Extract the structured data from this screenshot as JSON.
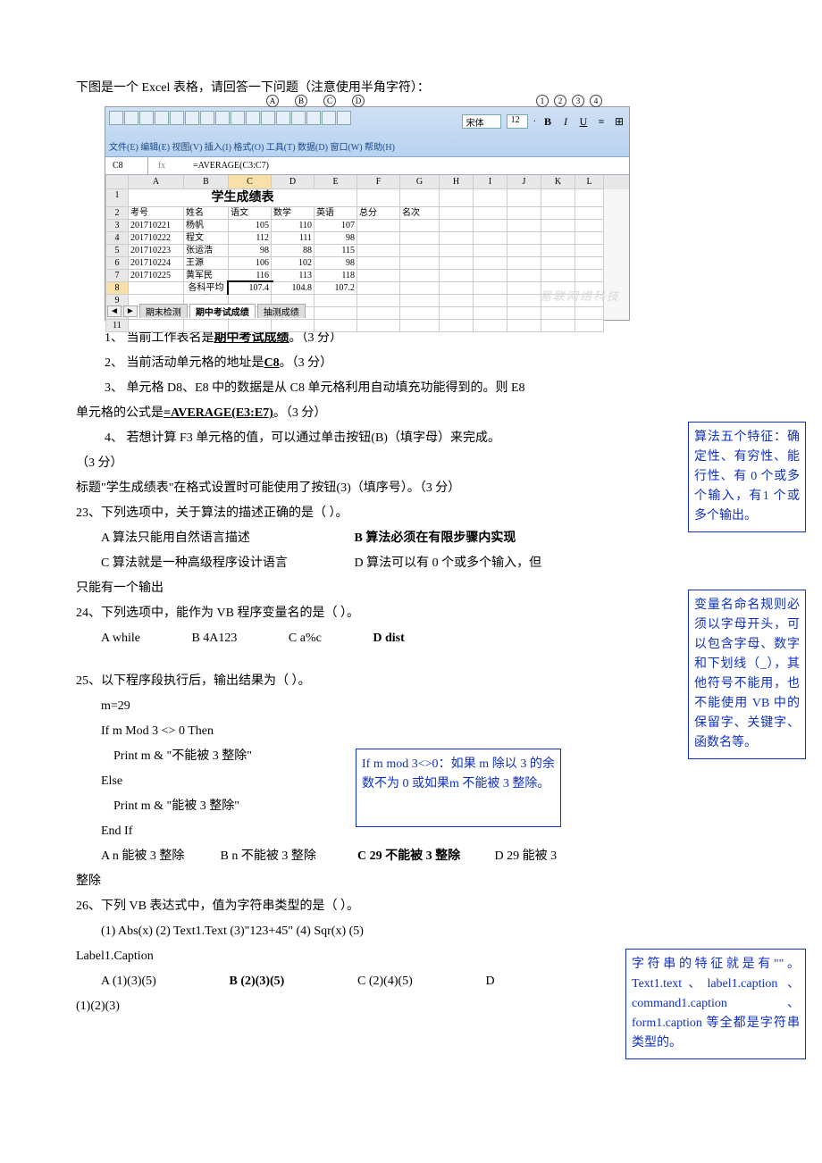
{
  "intro": "下图是一个 Excel 表格，请回答一下问题（注意使用半角字符）：",
  "excel": {
    "abcd": [
      "A",
      "B",
      "C",
      "D"
    ],
    "nums": [
      "1",
      "2",
      "3",
      "4"
    ],
    "menu": "文件(E)  编辑(E)  视图(V)  插入(I)  格式(O)  工具(T)  数据(D)  窗口(W)  帮助(H)",
    "font_name": "宋体",
    "font_size": "12",
    "name_box": "C8",
    "formula": "=AVERAGE(C3:C7)",
    "cols": [
      "A",
      "B",
      "C",
      "D",
      "E",
      "F",
      "G",
      "H",
      "I",
      "J",
      "K",
      "L"
    ],
    "title": "学生成绩表",
    "header": [
      "考号",
      "姓名",
      "语文",
      "数学",
      "英语",
      "总分",
      "名次"
    ],
    "rows": [
      [
        "20171022​1",
        "杨帆",
        "105",
        "110",
        "107",
        "",
        ""
      ],
      [
        "20171022​2",
        "程文",
        "112",
        "111",
        "98",
        "",
        ""
      ],
      [
        "20171022​3",
        "张运浩",
        "98",
        "88",
        "115",
        "",
        ""
      ],
      [
        "20171022​4",
        "王源",
        "106",
        "102",
        "98",
        "",
        ""
      ],
      [
        "20171022​5",
        "黄军民",
        "116",
        "113",
        "118",
        "",
        ""
      ]
    ],
    "avg_row": [
      "",
      "各科平均分",
      "107.4",
      "104.8",
      "107.2",
      "",
      ""
    ],
    "tabs_pre": "◄ ◄ ► ►",
    "tabs": [
      "期末检测",
      "期中考试成绩",
      "抽测成绩"
    ],
    "watermark": "易联网络科技"
  },
  "q1": {
    "pre": "1、 当前工作表名是",
    "ans": "期中考试成绩",
    "post": "。（3 分）"
  },
  "q2": {
    "pre": "2、 当前活动单元格的地址是",
    "ans": "C8",
    "post": "。（3 分）"
  },
  "q3_a": "3、 单元格 D8、E8 中的数据是从 C8 单元格利用自动填充功能得到的。则 E8",
  "q3_b_pre": "单元格的公式是",
  "q3_ans": "=AVERAGE(E3:E7)",
  "q3_b_post": "。（3 分）",
  "q4_a": "4、 若想计算 F3 单元格的值，可以通过单击按钮(B)（填字母）来完成。",
  "q4_b": "（3 分）",
  "q4_c": "标题\"学生成绩表\"在格式设置时可能使用了按钮(3)（填序号）。（3 分）",
  "q23": {
    "stem": "23、下列选项中，关于算法的描述正确的是（    ）。",
    "a": "A 算法只能用自然语言描述",
    "b": "B 算法必须在有限步骤内实现",
    "c": "C 算法就是一种高级程序设计语言",
    "d_1": "D 算法可以有 0 个或多个输入，但",
    "d_2": "只能有一个输出"
  },
  "q24": {
    "stem": "24、下列选项中，能作为 VB 程序变量名的是（    ）。",
    "a": "A while",
    "b": "B 4A123",
    "c": "C a%c",
    "d": "D dist"
  },
  "q25": {
    "stem": "25、以下程序段执行后，输出结果为（     ）。",
    "l1": "m=29",
    "l2": "If m Mod 3 <> 0   Then",
    "l3": "Print   m   &   \"不能被 3 整除\"",
    "l4": "Else",
    "l5": "Print   m   &   \"能被 3 整除\"",
    "l6": "End   If",
    "a": "A n 能被 3 整除",
    "b": "B n 不能被 3 整除",
    "c": "C 29 不能被 3 整除",
    "d_1": "D 29 能被 3",
    "d_2": "整除"
  },
  "q26": {
    "stem": "26、下列 VB 表达式中，值为字符串类型的是（   ）。",
    "items": "(1) Abs(x)    (2) Text1.Text     (3)\"123+45\"  (4) Sqr(x)  (5)",
    "items2": "Label1.Caption",
    "a": "A (1)(3)(5)",
    "b": "B (2)(3)(5)",
    "c": "C (2)(4)(5)",
    "d": "D",
    "d2": "(1)(2)(3)"
  },
  "annot1": "算法五个特征：确定性、有穷性、能行性、有 0 个或多个输入，有1 个或多个输出。",
  "annot2": "变量名命名规则必须以字母开头，可以包含字母、数字和下划线（_），其他符号不能用，也不能使用 VB 中的保留字、关键字、函数名等。",
  "annot3": "If m mod 3<>0：如果 m 除以 3 的余数不为 0 或如果m 不能被 3 整除。",
  "annot4": "字符串的特征就是有\"\"。Text1.text、label1.caption 、command1.caption 、form1.caption 等全都是字符串类型的。"
}
